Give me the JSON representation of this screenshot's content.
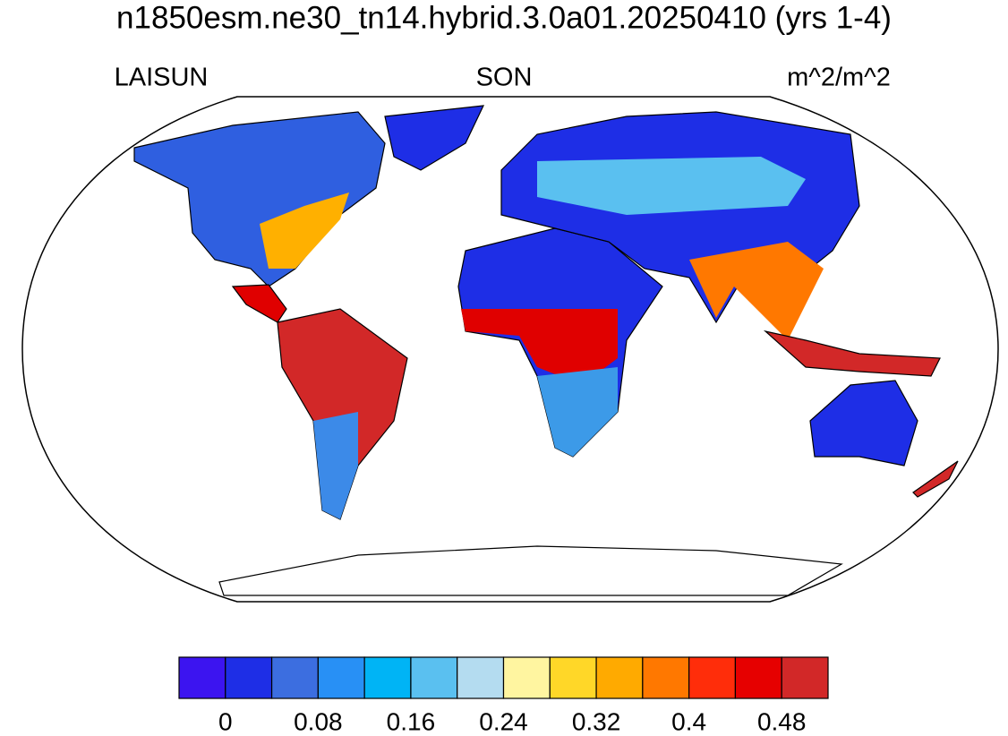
{
  "header": {
    "title": "n1850esm.ne30_tn14.hybrid.3.0a01.20250410 (yrs 1-4)",
    "left_label": "LAISUN",
    "center_label": "SON",
    "right_label": "m^2/m^2"
  },
  "colorbar": {
    "levels": [
      0,
      0.04,
      0.08,
      0.12,
      0.16,
      0.2,
      0.24,
      0.28,
      0.32,
      0.36,
      0.4,
      0.44,
      0.48
    ],
    "colors": [
      "#3c14f0",
      "#1e2ee6",
      "#3c6ee0",
      "#2890f5",
      "#00b4f5",
      "#5ac0f0",
      "#b4dcf0",
      "#fff5a0",
      "#ffd728",
      "#ffaa00",
      "#ff7800",
      "#ff2d0a",
      "#e60000",
      "#d22828"
    ],
    "ticks": [
      0,
      0.08,
      0.16,
      0.24,
      0.32,
      0.4,
      0.48
    ]
  }
}
